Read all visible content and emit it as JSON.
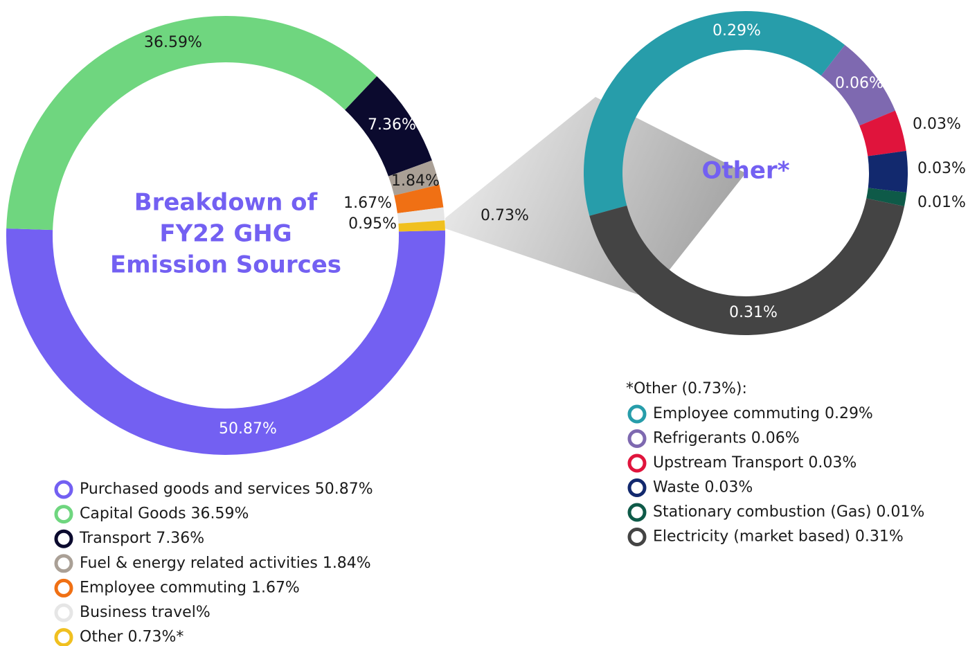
{
  "chart_data": [
    {
      "type": "donut",
      "title": [
        "Breakdown of",
        "FY22 GHG",
        "Emission Sources"
      ],
      "categories": [
        "Purchased goods and services 50.87%",
        "Capital Goods 36.59%",
        "Transport 7.36%",
        "Fuel & energy related activities 1.84%",
        "Employee commuting 1.67%",
        "Business travel%",
        "Other 0.73%*"
      ],
      "values": [
        50.87,
        36.59,
        7.36,
        1.84,
        1.67,
        0.95,
        0.73
      ],
      "value_labels": [
        "50.87%",
        "36.59%",
        "7.36%",
        "1.84%",
        "1.67%",
        "0.95%",
        "0.73%"
      ],
      "colors": [
        "#7360f2",
        "#6fd67f",
        "#0b0a2e",
        "#aaa096",
        "#f07014",
        "#e6e6e6",
        "#f0c020"
      ]
    },
    {
      "type": "donut",
      "title": [
        "Other*"
      ],
      "legend_title": "*Other (0.73%):",
      "categories": [
        "Employee commuting 0.29%",
        "Refrigerants 0.06%",
        "Upstream Transport 0.03%",
        "Waste 0.03%",
        "Stationary combustion (Gas) 0.01%",
        "Electricity (market based) 0.31%"
      ],
      "values": [
        0.29,
        0.06,
        0.03,
        0.03,
        0.01,
        0.31
      ],
      "value_labels": [
        "0.29%",
        "0.06%",
        "0.03%",
        "0.03%",
        "0.01%",
        "0.31%"
      ],
      "colors": [
        "#279daa",
        "#7e69b0",
        "#e0143c",
        "#12296e",
        "#0e5a48",
        "#444444"
      ]
    }
  ]
}
